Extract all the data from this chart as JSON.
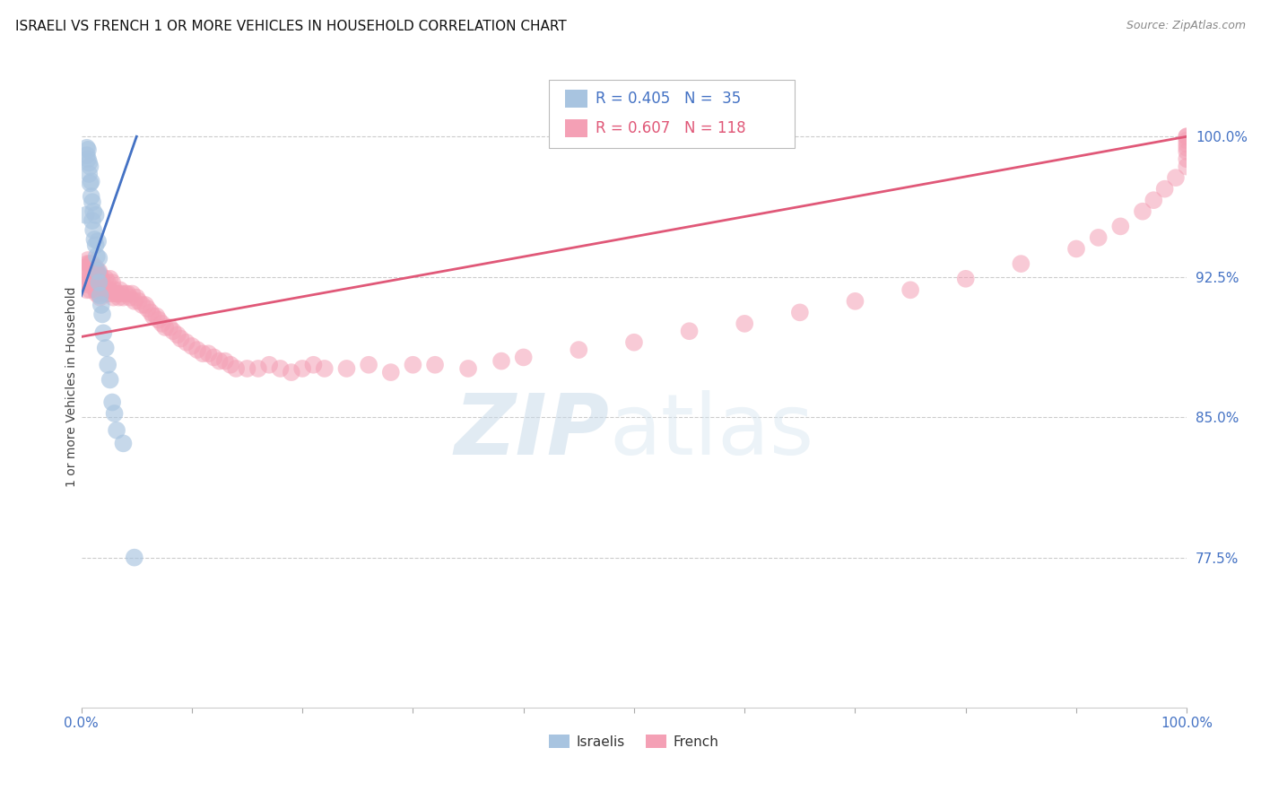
{
  "title": "ISRAELI VS FRENCH 1 OR MORE VEHICLES IN HOUSEHOLD CORRELATION CHART",
  "source": "Source: ZipAtlas.com",
  "ylabel": "1 or more Vehicles in Household",
  "legend_israelis": "Israelis",
  "legend_french": "French",
  "r_israelis": 0.405,
  "n_israelis": 35,
  "r_french": 0.607,
  "n_french": 118,
  "color_israelis": "#a8c4e0",
  "color_french": "#f4a0b5",
  "line_color_israelis": "#4472c4",
  "line_color_french": "#e05878",
  "axis_label_color": "#4472c4",
  "xmin": 0.0,
  "xmax": 1.0,
  "ymin": 0.695,
  "ymax": 1.038,
  "ytick_vals": [
    0.775,
    0.85,
    0.925,
    1.0
  ],
  "ytick_labels": [
    "77.5%",
    "85.0%",
    "92.5%",
    "100.0%"
  ],
  "isr_x": [
    0.004,
    0.005,
    0.005,
    0.006,
    0.006,
    0.007,
    0.007,
    0.008,
    0.008,
    0.009,
    0.009,
    0.01,
    0.01,
    0.011,
    0.011,
    0.012,
    0.013,
    0.013,
    0.014,
    0.015,
    0.015,
    0.016,
    0.016,
    0.017,
    0.018,
    0.019,
    0.02,
    0.022,
    0.024,
    0.026,
    0.028,
    0.03,
    0.032,
    0.038,
    0.048
  ],
  "isr_y": [
    0.958,
    0.994,
    0.99,
    0.993,
    0.988,
    0.986,
    0.98,
    0.984,
    0.975,
    0.976,
    0.968,
    0.965,
    0.955,
    0.96,
    0.95,
    0.945,
    0.958,
    0.942,
    0.936,
    0.944,
    0.928,
    0.935,
    0.922,
    0.915,
    0.91,
    0.905,
    0.895,
    0.887,
    0.878,
    0.87,
    0.858,
    0.852,
    0.843,
    0.836,
    0.775
  ],
  "fr_x": [
    0.002,
    0.003,
    0.004,
    0.004,
    0.005,
    0.005,
    0.006,
    0.006,
    0.007,
    0.007,
    0.008,
    0.008,
    0.009,
    0.009,
    0.01,
    0.01,
    0.011,
    0.011,
    0.012,
    0.012,
    0.013,
    0.013,
    0.014,
    0.014,
    0.015,
    0.016,
    0.016,
    0.017,
    0.017,
    0.018,
    0.019,
    0.02,
    0.021,
    0.022,
    0.023,
    0.024,
    0.025,
    0.026,
    0.027,
    0.028,
    0.029,
    0.03,
    0.031,
    0.033,
    0.034,
    0.035,
    0.036,
    0.038,
    0.04,
    0.042,
    0.044,
    0.046,
    0.048,
    0.05,
    0.052,
    0.055,
    0.058,
    0.06,
    0.063,
    0.065,
    0.068,
    0.07,
    0.073,
    0.076,
    0.08,
    0.083,
    0.087,
    0.09,
    0.095,
    0.1,
    0.105,
    0.11,
    0.115,
    0.12,
    0.125,
    0.13,
    0.135,
    0.14,
    0.15,
    0.16,
    0.17,
    0.18,
    0.19,
    0.2,
    0.21,
    0.22,
    0.24,
    0.26,
    0.28,
    0.3,
    0.32,
    0.35,
    0.38,
    0.4,
    0.45,
    0.5,
    0.55,
    0.6,
    0.65,
    0.7,
    0.75,
    0.8,
    0.85,
    0.9,
    0.92,
    0.94,
    0.96,
    0.97,
    0.98,
    0.99,
    1.0,
    1.0,
    1.0,
    1.0,
    1.0,
    1.0,
    1.0,
    1.0
  ],
  "fr_y": [
    0.928,
    0.93,
    0.926,
    0.921,
    0.932,
    0.918,
    0.934,
    0.922,
    0.932,
    0.924,
    0.932,
    0.918,
    0.93,
    0.922,
    0.932,
    0.92,
    0.93,
    0.924,
    0.928,
    0.922,
    0.93,
    0.918,
    0.928,
    0.916,
    0.926,
    0.928,
    0.916,
    0.926,
    0.914,
    0.924,
    0.922,
    0.92,
    0.918,
    0.924,
    0.916,
    0.922,
    0.918,
    0.924,
    0.916,
    0.922,
    0.914,
    0.918,
    0.916,
    0.916,
    0.914,
    0.918,
    0.916,
    0.914,
    0.916,
    0.916,
    0.914,
    0.916,
    0.912,
    0.914,
    0.912,
    0.91,
    0.91,
    0.908,
    0.906,
    0.904,
    0.904,
    0.902,
    0.9,
    0.898,
    0.898,
    0.896,
    0.894,
    0.892,
    0.89,
    0.888,
    0.886,
    0.884,
    0.884,
    0.882,
    0.88,
    0.88,
    0.878,
    0.876,
    0.876,
    0.876,
    0.878,
    0.876,
    0.874,
    0.876,
    0.878,
    0.876,
    0.876,
    0.878,
    0.874,
    0.878,
    0.878,
    0.876,
    0.88,
    0.882,
    0.886,
    0.89,
    0.896,
    0.9,
    0.906,
    0.912,
    0.918,
    0.924,
    0.932,
    0.94,
    0.946,
    0.952,
    0.96,
    0.966,
    0.972,
    0.978,
    0.984,
    0.988,
    0.992,
    0.994,
    0.996,
    0.998,
    1.0,
    1.0
  ],
  "isr_line_x": [
    0.0,
    0.05
  ],
  "isr_line_y": [
    0.915,
    1.0
  ],
  "fr_line_x": [
    0.0,
    1.0
  ],
  "fr_line_y": [
    0.893,
    1.0
  ]
}
